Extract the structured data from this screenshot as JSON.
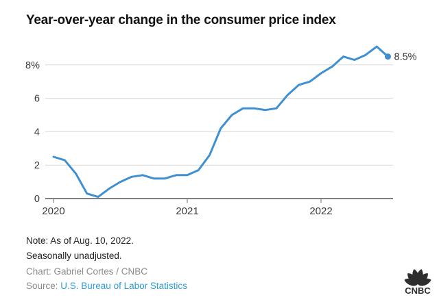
{
  "page": {
    "title": "Year-over-year change in the consumer price index",
    "notes": {
      "note_line1": "Note: As of Aug. 10, 2022.",
      "note_line2": "Seasonally unadjusted.",
      "credit": "Chart: Gabriel Cortes / CNBC",
      "source_label": "Source: ",
      "source_link": "U.S. Bureau of Labor Statistics"
    },
    "logo": {
      "text": "CNBC"
    }
  },
  "colors": {
    "line": "#3f8fd1",
    "grid": "#d9d9d9",
    "baseline": "#7f7f7f",
    "axis_text": "#383838",
    "end_label_text": "#333333",
    "title_text": "#111111",
    "note_text": "#222222",
    "credit_text": "#8a8a8a",
    "link": "#2d9cd6",
    "logo": "#2e2e2e"
  },
  "chart_data": {
    "type": "line",
    "title": "Year-over-year change in the consumer price index",
    "unit": "percent",
    "grid": true,
    "legend": false,
    "x": [
      "Jan 2020",
      "Feb 2020",
      "Mar 2020",
      "Apr 2020",
      "May 2020",
      "Jun 2020",
      "Jul 2020",
      "Aug 2020",
      "Sep 2020",
      "Oct 2020",
      "Nov 2020",
      "Dec 2020",
      "Jan 2021",
      "Feb 2021",
      "Mar 2021",
      "Apr 2021",
      "May 2021",
      "Jun 2021",
      "Jul 2021",
      "Aug 2021",
      "Sep 2021",
      "Oct 2021",
      "Nov 2021",
      "Dec 2021",
      "Jan 2022",
      "Feb 2022",
      "Mar 2022",
      "Apr 2022",
      "May 2022",
      "Jun 2022",
      "Jul 2022"
    ],
    "values": [
      2.5,
      2.3,
      1.5,
      0.3,
      0.1,
      0.6,
      1.0,
      1.3,
      1.4,
      1.2,
      1.2,
      1.4,
      1.4,
      1.7,
      2.6,
      4.2,
      5.0,
      5.4,
      5.4,
      5.3,
      5.4,
      6.2,
      6.8,
      7.0,
      7.5,
      7.9,
      8.5,
      8.3,
      8.6,
      9.1,
      8.5
    ],
    "ylim": [
      0,
      9.5
    ],
    "yticks": [
      0,
      2,
      4,
      6,
      8
    ],
    "ytick_labels": [
      "0",
      "2",
      "4",
      "6",
      "8%"
    ],
    "xticks": [
      {
        "label": "2020",
        "index": 0
      },
      {
        "label": "2021",
        "index": 12
      },
      {
        "label": "2022",
        "index": 24
      }
    ],
    "end_label": "8.5%"
  }
}
